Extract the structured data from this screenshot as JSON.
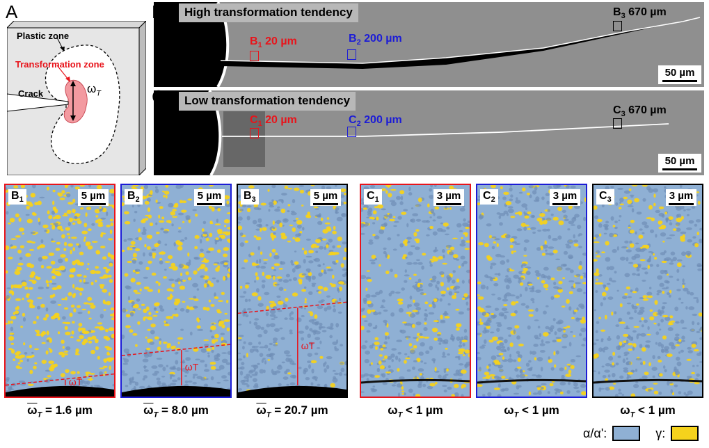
{
  "panel_letters": {
    "a": "A",
    "b": "B",
    "c": "C"
  },
  "schematic": {
    "plastic_zone": "Plastic zone",
    "transformation_zone": "Transformation zone",
    "crack": "Crack",
    "omega_symbol": "ω",
    "omega_sub": "T"
  },
  "strip_b": {
    "title": "High transformation tendency",
    "scale": "50 µm",
    "sites": [
      {
        "letter": "B",
        "sub": "1",
        "dist": "20 µm",
        "color": "#e8141b"
      },
      {
        "letter": "B",
        "sub": "2",
        "dist": "200 µm",
        "color": "#1c1cd6"
      },
      {
        "letter": "B",
        "sub": "3",
        "dist": "670 µm",
        "color": "#000000"
      }
    ]
  },
  "strip_c": {
    "title": "Low transformation tendency",
    "scale": "50 µm",
    "sites": [
      {
        "letter": "C",
        "sub": "1",
        "dist": "20 µm",
        "color": "#e8141b"
      },
      {
        "letter": "C",
        "sub": "2",
        "dist": "200 µm",
        "color": "#1c1cd6"
      },
      {
        "letter": "C",
        "sub": "3",
        "dist": "670 µm",
        "color": "#000000"
      }
    ]
  },
  "micrographs": [
    {
      "letter": "B",
      "sub": "1",
      "scale": "5 µm",
      "caption": "= 1.6 µm",
      "overline": true,
      "border": "#e8141b",
      "gamma_fraction": 0.85,
      "zone_top": 0.92
    },
    {
      "letter": "B",
      "sub": "2",
      "scale": "5 µm",
      "caption": "= 8.0 µm",
      "overline": true,
      "border": "#1c1cd6",
      "gamma_fraction": 0.65,
      "zone_top": 0.78
    },
    {
      "letter": "B",
      "sub": "3",
      "scale": "5 µm",
      "caption": "= 20.7 µm",
      "overline": true,
      "border": "#000000",
      "gamma_fraction": 0.45,
      "zone_top": 0.58
    },
    {
      "letter": "C",
      "sub": "1",
      "scale": "3 µm",
      "caption": "< 1 µm",
      "overline": false,
      "border": "#e8141b",
      "gamma_fraction": 0.35,
      "zone_top": 1.0
    },
    {
      "letter": "C",
      "sub": "2",
      "scale": "3 µm",
      "caption": "< 1 µm",
      "overline": false,
      "border": "#1c1cd6",
      "gamma_fraction": 0.3,
      "zone_top": 1.0
    },
    {
      "letter": "C",
      "sub": "3",
      "scale": "3 µm",
      "caption": "< 1 µm",
      "overline": false,
      "border": "#000000",
      "gamma_fraction": 0.3,
      "zone_top": 1.0
    }
  ],
  "legend": {
    "alpha_label": "α/α':",
    "alpha_color": "#8fb0d4",
    "gamma_label": "γ:",
    "gamma_color": "#f5d21c"
  }
}
